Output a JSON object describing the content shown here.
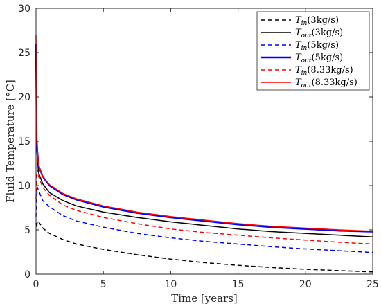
{
  "chart_data": {
    "type": "line",
    "title": "",
    "xlabel": "Time [years]",
    "ylabel": "Fluid Temperature [°C]",
    "xlim": [
      0,
      25
    ],
    "ylim": [
      0,
      30
    ],
    "xticks": [
      0,
      5,
      10,
      15,
      20,
      25
    ],
    "yticks": [
      0,
      5,
      10,
      15,
      20,
      25,
      30
    ],
    "grid": false,
    "legend_position": "top-right",
    "x": [
      0,
      0.05,
      0.1,
      0.2,
      0.5,
      1,
      2,
      3,
      5,
      7.5,
      10,
      12.5,
      15,
      17.5,
      20,
      22.5,
      25
    ],
    "series": [
      {
        "name": "T_in(3kg/s)",
        "legend_main": "T",
        "legend_sub": "in",
        "legend_rest": "(3kg/s)",
        "color": "#000000",
        "dash": "dashed",
        "width": "thin",
        "values": [
          5.8,
          5.2,
          6.0,
          5.9,
          5.2,
          4.6,
          3.9,
          3.4,
          2.8,
          2.2,
          1.7,
          1.3,
          1.0,
          0.75,
          0.55,
          0.4,
          0.25
        ]
      },
      {
        "name": "T_out(3kg/s)",
        "legend_main": "T",
        "legend_sub": "out",
        "legend_rest": "(3kg/s)",
        "color": "#000000",
        "dash": "solid",
        "width": "thin",
        "values": [
          25.0,
          14.5,
          13.0,
          11.4,
          10.2,
          9.2,
          8.3,
          7.7,
          7.0,
          6.4,
          5.9,
          5.5,
          5.1,
          4.8,
          4.6,
          4.4,
          4.2
        ]
      },
      {
        "name": "T_in(5kg/s)",
        "legend_main": "T",
        "legend_sub": "in",
        "legend_rest": "(5kg/s)",
        "color": "#0000ff",
        "dash": "dashed",
        "width": "thin",
        "values": [
          6.5,
          8.5,
          9.8,
          9.4,
          8.3,
          7.6,
          6.6,
          6.0,
          5.3,
          4.6,
          4.1,
          3.7,
          3.4,
          3.1,
          2.85,
          2.65,
          2.45
        ]
      },
      {
        "name": "T_out(5kg/s)",
        "legend_main": "T",
        "legend_sub": "out",
        "legend_rest": "(5kg/s)",
        "color": "#0000ff",
        "dash": "solid",
        "width": "thick",
        "values": [
          26.0,
          15.3,
          13.8,
          12.2,
          11.0,
          10.0,
          9.0,
          8.4,
          7.6,
          6.9,
          6.4,
          6.0,
          5.6,
          5.3,
          5.1,
          4.9,
          4.8
        ]
      },
      {
        "name": "T_in(8.33kg/s)",
        "legend_main": "T",
        "legend_sub": "in",
        "legend_rest": "(8.33kg/s)",
        "color": "#ff0000",
        "dash": "dashed",
        "width": "thin",
        "values": [
          8.5,
          11.0,
          11.8,
          11.0,
          9.8,
          8.9,
          7.8,
          7.2,
          6.4,
          5.7,
          5.1,
          4.7,
          4.4,
          4.1,
          3.85,
          3.6,
          3.4
        ]
      },
      {
        "name": "T_out(8.33kg/s)",
        "legend_main": "T",
        "legend_sub": "out",
        "legend_rest": "(8.33kg/s)",
        "color": "#ff0000",
        "dash": "solid",
        "width": "thin",
        "values": [
          27.0,
          15.5,
          14.0,
          12.3,
          11.0,
          10.1,
          9.1,
          8.5,
          7.7,
          7.0,
          6.5,
          6.1,
          5.7,
          5.4,
          5.2,
          5.0,
          4.85
        ]
      }
    ]
  }
}
